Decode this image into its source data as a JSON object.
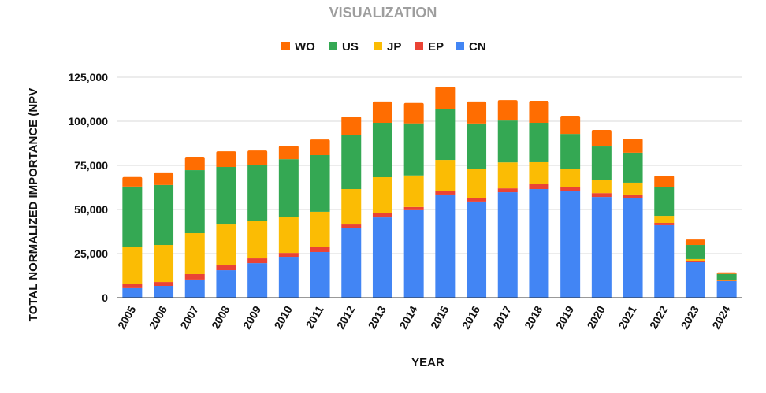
{
  "chart_data": {
    "type": "bar",
    "stacked": true,
    "title": "VISUALIZATION",
    "xlabel": "YEAR",
    "ylabel": "TOTAL NORMALIZED IMPORTANCE (NPV",
    "ylim": [
      0,
      125000
    ],
    "yticks": [
      0,
      25000,
      50000,
      75000,
      100000,
      125000
    ],
    "ytick_labels": [
      "0",
      "25,000",
      "50,000",
      "75,000",
      "100,000",
      "125,000"
    ],
    "grid": true,
    "legend_position": "top-center",
    "categories": [
      "2005",
      "2006",
      "2007",
      "2008",
      "2009",
      "2010",
      "2011",
      "2012",
      "2013",
      "2014",
      "2015",
      "2016",
      "2017",
      "2018",
      "2019",
      "2020",
      "2021",
      "2022",
      "2023",
      "2024"
    ],
    "series": [
      {
        "name": "CN",
        "color": "#4285f4",
        "values": [
          5400,
          6700,
          10300,
          15600,
          19600,
          23200,
          25900,
          39300,
          45500,
          49600,
          58500,
          54500,
          59800,
          61600,
          60700,
          57100,
          56700,
          41100,
          20100,
          9400
        ]
      },
      {
        "name": "EP",
        "color": "#ea4335",
        "values": [
          2200,
          2200,
          3100,
          2700,
          2700,
          2200,
          2700,
          2200,
          2700,
          1800,
          2200,
          2200,
          2200,
          2700,
          2200,
          2200,
          1800,
          1300,
          900,
          200
        ]
      },
      {
        "name": "JP",
        "color": "#fbbc04",
        "values": [
          21000,
          21000,
          23200,
          23200,
          21400,
          20500,
          20100,
          20100,
          20100,
          17900,
          17400,
          16100,
          14700,
          12500,
          10300,
          7600,
          6700,
          4000,
          900,
          300
        ]
      },
      {
        "name": "US",
        "color": "#34a853",
        "values": [
          34400,
          34000,
          35700,
          32600,
          31700,
          32600,
          32100,
          30400,
          30800,
          29500,
          29000,
          25900,
          23700,
          22300,
          19600,
          18800,
          17000,
          16100,
          8000,
          3600
        ]
      },
      {
        "name": "WO",
        "color": "#ff6d01",
        "values": [
          5400,
          6700,
          7600,
          8900,
          8000,
          7600,
          8900,
          10700,
          12100,
          11600,
          12500,
          12500,
          11600,
          12500,
          10300,
          9400,
          8000,
          6700,
          3100,
          900
        ]
      }
    ],
    "legend_order": [
      "WO",
      "US",
      "JP",
      "EP",
      "CN"
    ]
  }
}
